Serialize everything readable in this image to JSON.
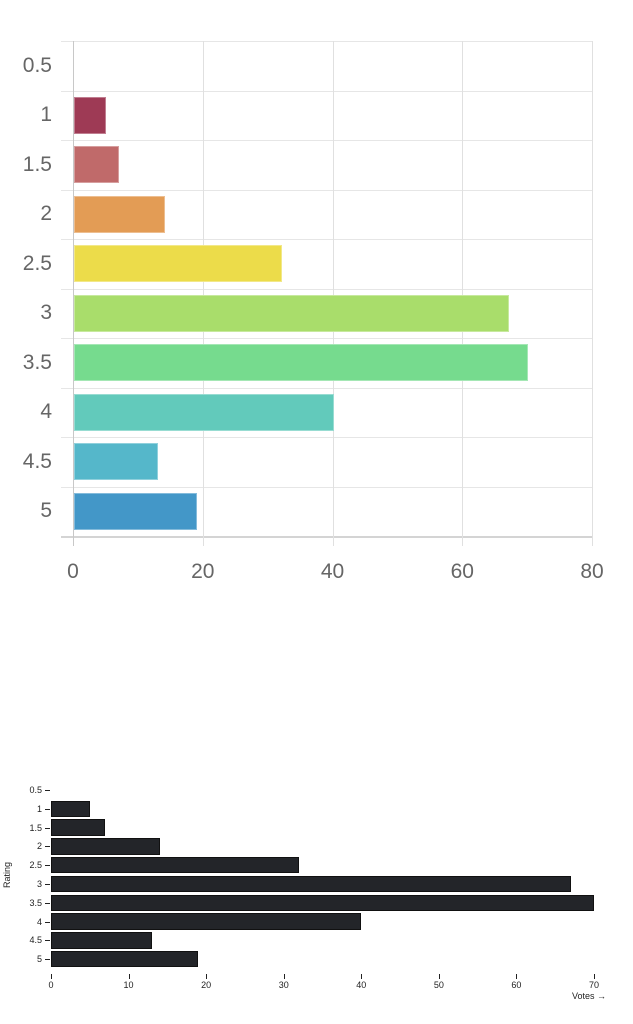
{
  "chart_data": [
    {
      "type": "bar",
      "orientation": "horizontal",
      "title": "",
      "xlabel": "",
      "ylabel": "",
      "categories": [
        "0.5",
        "1",
        "1.5",
        "2",
        "2.5",
        "3",
        "3.5",
        "4",
        "4.5",
        "5"
      ],
      "values": [
        0,
        5,
        7,
        14,
        32,
        67,
        70,
        40,
        13,
        19
      ],
      "colors": [
        "#9e3a55",
        "#9e3a55",
        "#c06a6a",
        "#e39c55",
        "#ecdc4a",
        "#a9dd6b",
        "#76db8e",
        "#62cabb",
        "#55b7ca",
        "#4397c8"
      ],
      "xlim": [
        0,
        80
      ],
      "xticks": [
        "0",
        "20",
        "40",
        "60",
        "80"
      ],
      "grid": true,
      "legend": null
    },
    {
      "type": "bar",
      "orientation": "horizontal",
      "title": "",
      "xlabel": "Votes →",
      "ylabel": "Rating",
      "categories": [
        "0.5",
        "1",
        "1.5",
        "2",
        "2.5",
        "3",
        "3.5",
        "4",
        "4.5",
        "5"
      ],
      "values": [
        0,
        5,
        7,
        14,
        32,
        67,
        70,
        40,
        13,
        19
      ],
      "color": "#232529",
      "xlim": [
        0,
        70
      ],
      "xticks": [
        "0",
        "10",
        "20",
        "30",
        "40",
        "50",
        "60",
        "70"
      ],
      "grid": false,
      "legend": null
    }
  ]
}
